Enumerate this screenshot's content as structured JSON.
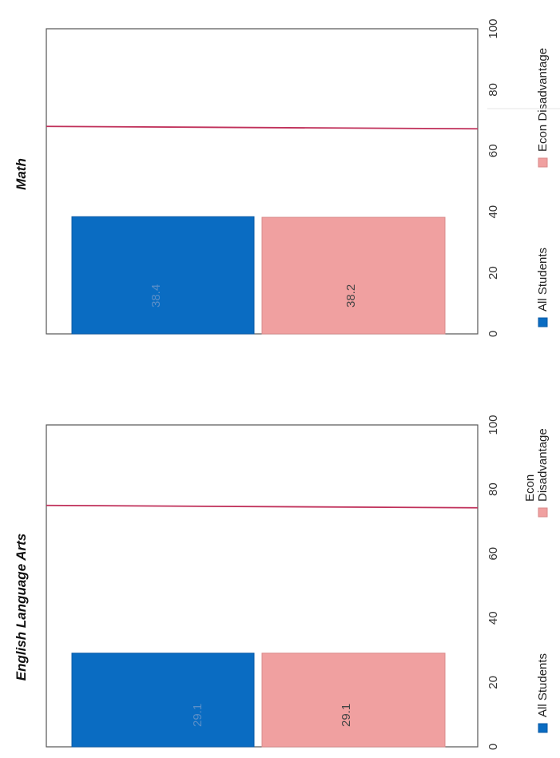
{
  "chart_data": [
    {
      "type": "bar",
      "title": "English Language Arts",
      "categories": [
        "All Students",
        "Econ Disadvantage"
      ],
      "values": [
        29.1,
        29.1
      ],
      "data_labels": [
        "29.1",
        "29.1"
      ],
      "series_colors": [
        "#0a6cc2",
        "#f0a0a0"
      ],
      "legend": [
        "All Students",
        "Econ Disadvantage"
      ],
      "legend_lines": [
        [
          "All Students"
        ],
        [
          "Econ",
          "Disadvantage"
        ]
      ],
      "xlim": [
        0,
        100
      ],
      "ticks": [
        "0",
        "20",
        "40",
        "60",
        "80",
        "100"
      ],
      "target_line": 75,
      "target_color": "#c0305a",
      "grid": false,
      "orientation": "horizontal (page rotated 90°)"
    },
    {
      "type": "bar",
      "title": "Math",
      "categories": [
        "All Students",
        "Econ Disadvantage"
      ],
      "values": [
        38.4,
        38.2
      ],
      "data_labels": [
        "38.4",
        "38.2"
      ],
      "series_colors": [
        "#0a6cc2",
        "#f0a0a0"
      ],
      "legend": [
        "All Students",
        "Econ Disadvantage"
      ],
      "legend_lines": [
        [
          "All Students"
        ],
        [
          "Econ Disadvantage"
        ]
      ],
      "xlim": [
        0,
        100
      ],
      "ticks": [
        "0",
        "20",
        "40",
        "60",
        "80",
        "100"
      ],
      "target_line": 68,
      "target_color": "#c0305a",
      "grid": false,
      "orientation": "horizontal (page rotated 90°)"
    }
  ]
}
